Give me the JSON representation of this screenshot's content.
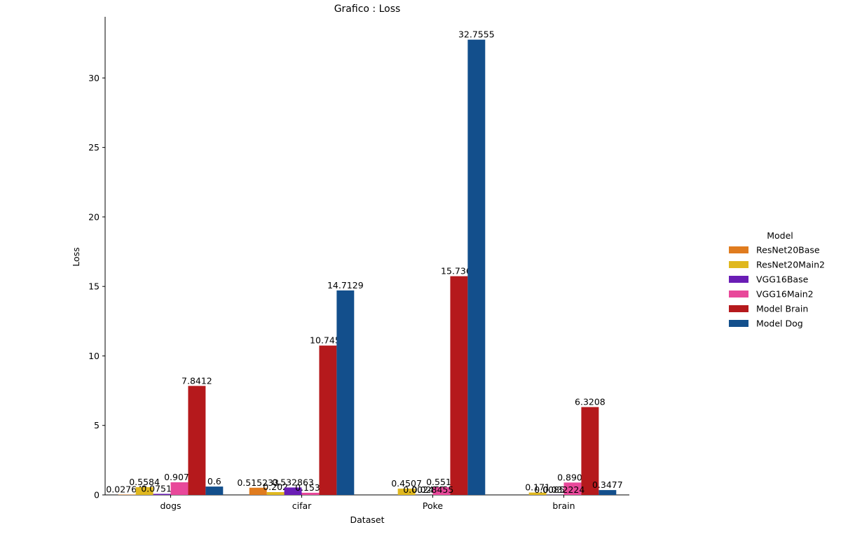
{
  "chart_data": {
    "type": "bar",
    "title": "Grafico : Loss",
    "xlabel": "Dataset",
    "ylabel": "Loss",
    "ylim": [
      0,
      34.4
    ],
    "yticks": [
      0,
      5,
      10,
      15,
      20,
      25,
      30
    ],
    "categories": [
      "dogs",
      "cifar",
      "Poke",
      "brain"
    ],
    "legend": {
      "title": "Model",
      "placement": "right"
    },
    "series": [
      {
        "name": "ResNet20Base",
        "color": "#e07c1f",
        "values": [
          0.027642,
          0.515233,
          0,
          0
        ],
        "labels": [
          "0.027642",
          "0.515233",
          "",
          ""
        ]
      },
      {
        "name": "ResNet20Main2",
        "color": "#e0b81f",
        "values": [
          0.5584,
          0.202,
          0.4507,
          0.171
        ],
        "labels": [
          "0.5584",
          "0.202",
          "0.4507",
          "0.171"
        ]
      },
      {
        "name": "VGG16Base",
        "color": "#6a1db5",
        "values": [
          0.075164,
          0.532863,
          0.002473,
          0.008598
        ],
        "labels": [
          "0.075164",
          "0.532863",
          "0.002473",
          "0.008598"
        ]
      },
      {
        "name": "VGG16Main2",
        "color": "#e8489a",
        "values": [
          0.9078,
          0.1539,
          0.5519,
          0.8905
        ],
        "labels": [
          "0.9078",
          "0.1539",
          "0.5519",
          "0.8905"
        ]
      },
      {
        "name": "Model Brain",
        "color": "#b5191c",
        "values": [
          7.8412,
          10.7454,
          15.7365,
          6.3208
        ],
        "labels": [
          "7.8412",
          "10.7454",
          "15.7365",
          "6.3208"
        ]
      },
      {
        "name": "Model Dog",
        "color": "#134f8c",
        "values": [
          0.6,
          14.7129,
          32.7555,
          0.3477
        ],
        "labels": [
          "0.6",
          "14.7129",
          "32.7555",
          "0.3477"
        ]
      }
    ],
    "extra_labels": [
      {
        "category": "Poke",
        "text": "0.028455"
      },
      {
        "category": "brain",
        "text": "0.032224"
      }
    ]
  }
}
